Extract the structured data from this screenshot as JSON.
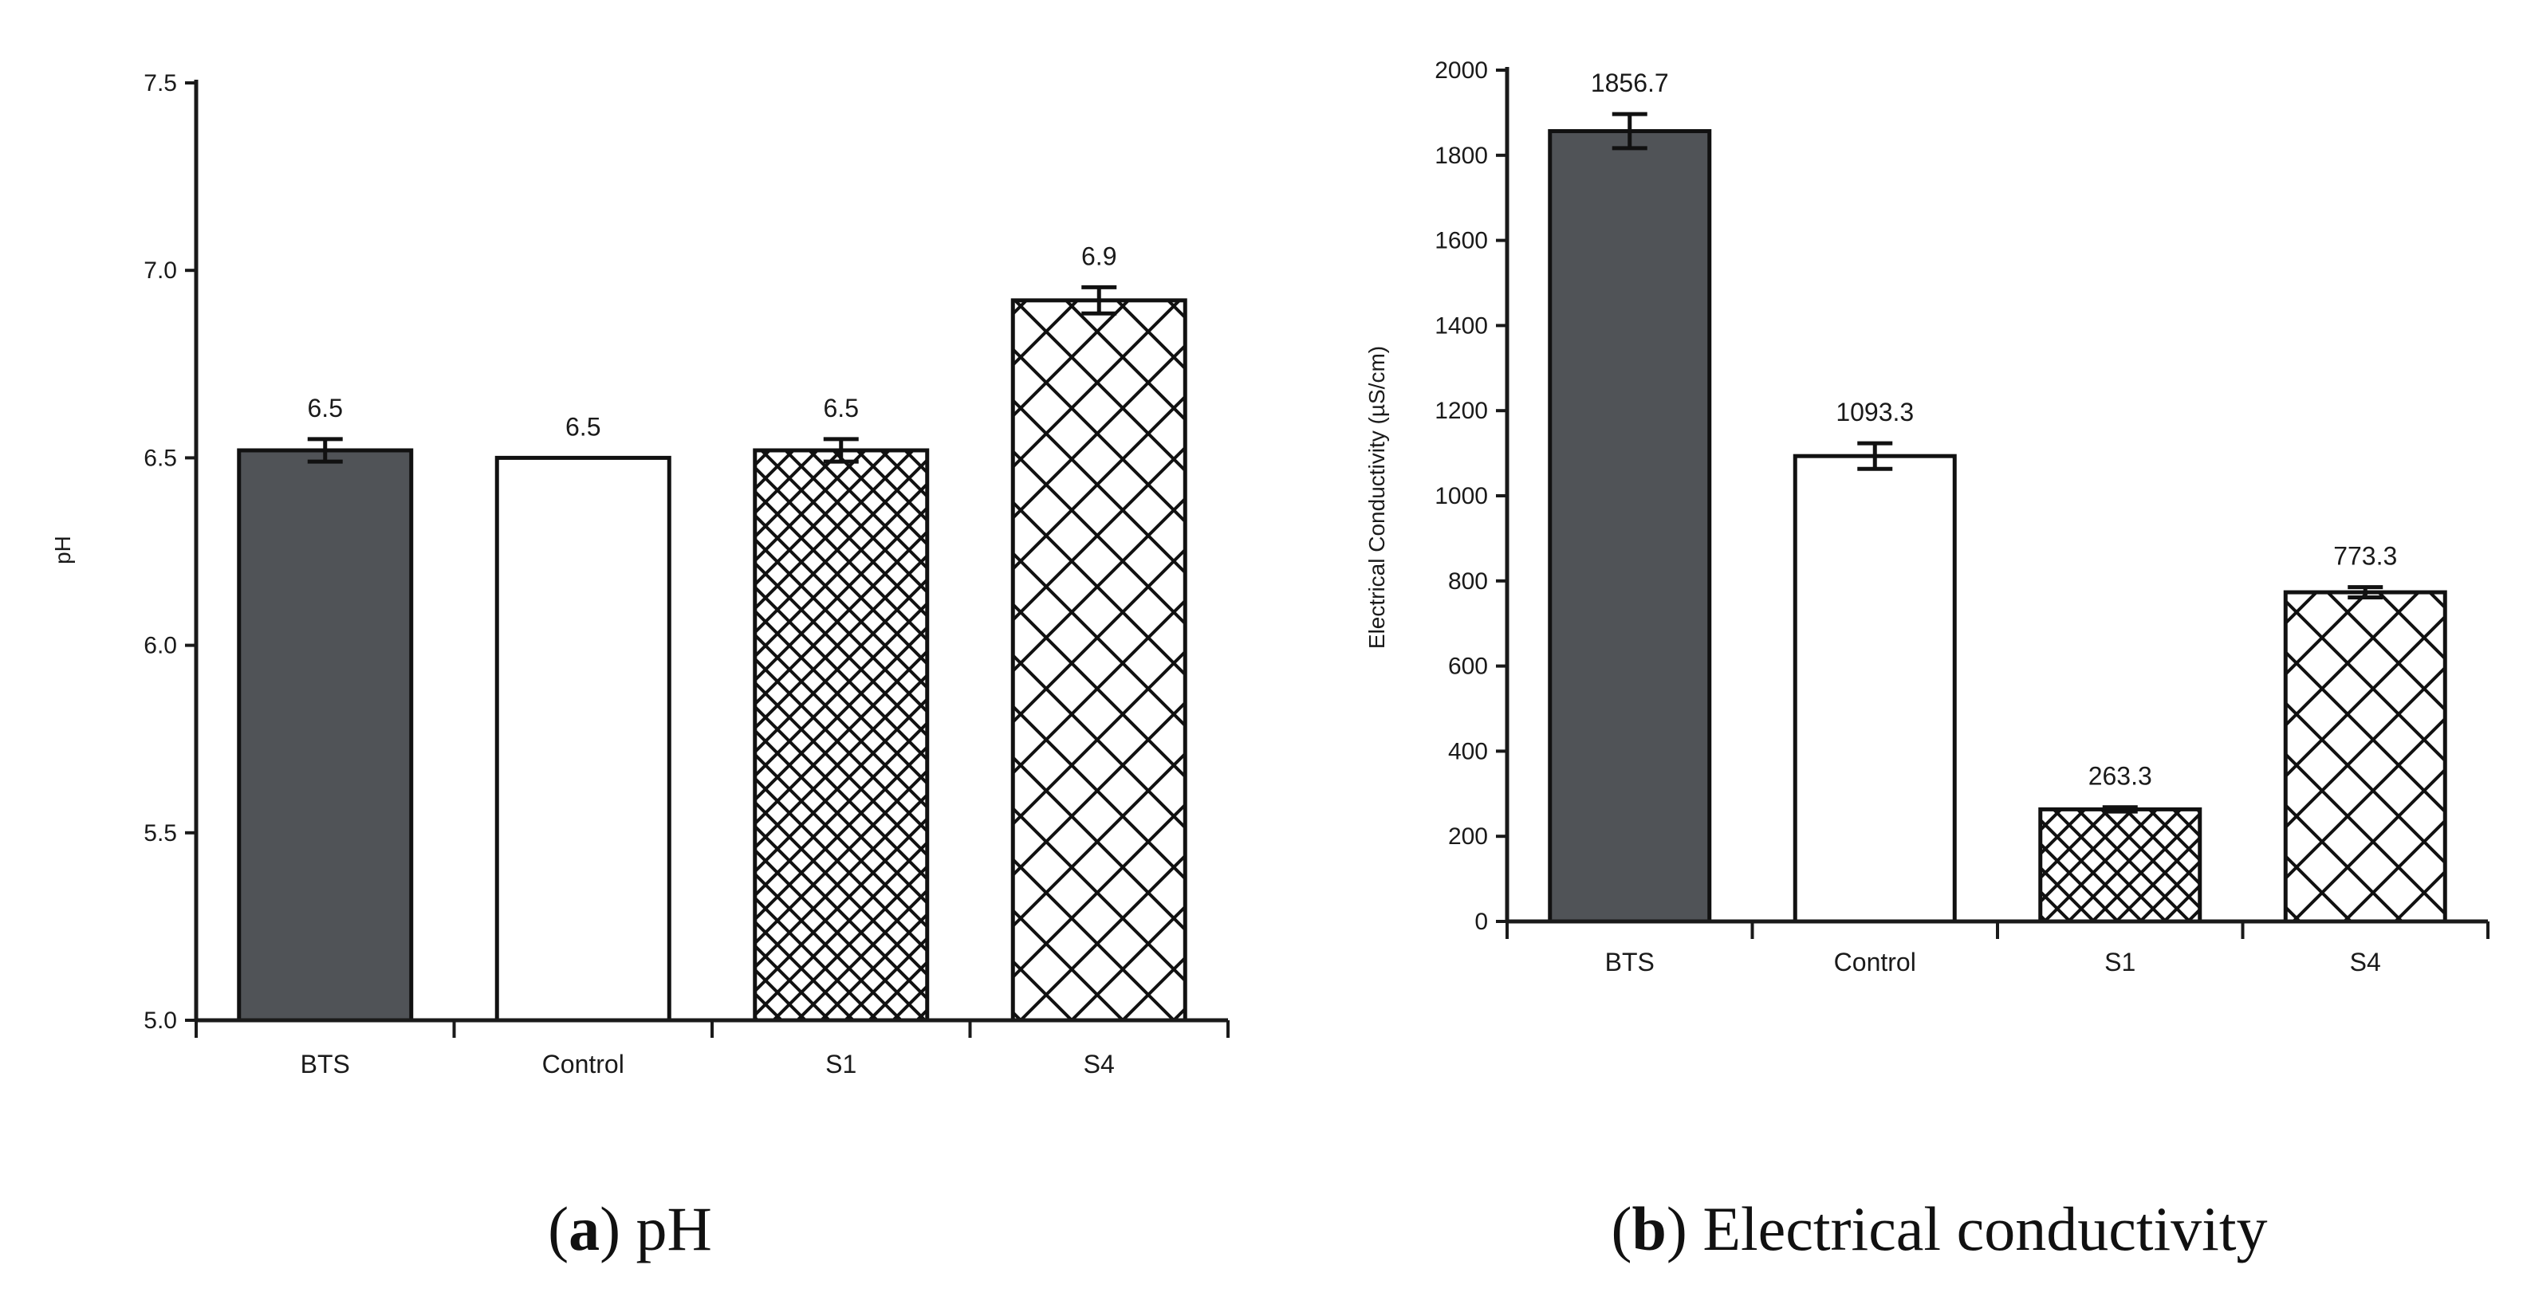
{
  "chart_data": [
    {
      "type": "bar",
      "title": "",
      "categories": [
        "BTS",
        "Control",
        "S1",
        "S4"
      ],
      "values": [
        6.52,
        6.5,
        6.52,
        6.92
      ],
      "errors": [
        0.03,
        0.0,
        0.03,
        0.035
      ],
      "data_labels": [
        "6.5",
        "6.5",
        "6.5",
        "6.9"
      ],
      "xlabel": "",
      "ylabel": "pH",
      "ylim": [
        5.0,
        7.5
      ],
      "yticks": [
        "5.0",
        "5.5",
        "6.0",
        "6.5",
        "7.0",
        "7.5"
      ],
      "grid": false,
      "caption_letter": "a",
      "caption_text": ") pH",
      "caption_open": "(",
      "fills": [
        "dark",
        "white",
        "crosshatch-fine",
        "crosshatch-coarse"
      ]
    },
    {
      "type": "bar",
      "title": "",
      "categories": [
        "BTS",
        "Control",
        "S1",
        "S4"
      ],
      "values": [
        1856.7,
        1093.3,
        263.3,
        773.3
      ],
      "errors": [
        40,
        30,
        5,
        12
      ],
      "data_labels": [
        "1856.7",
        "1093.3",
        "263.3",
        "773.3"
      ],
      "xlabel": "",
      "ylabel": "Electrical Conductivity (µS/cm)",
      "ylim": [
        0,
        2000
      ],
      "yticks": [
        "0",
        "200",
        "400",
        "600",
        "800",
        "1000",
        "1200",
        "1400",
        "1600",
        "1800",
        "2000"
      ],
      "grid": false,
      "caption_letter": "b",
      "caption_text": ") Electrical conductivity",
      "caption_open": "(",
      "fills": [
        "dark",
        "white",
        "crosshatch-fine",
        "crosshatch-coarse"
      ]
    }
  ],
  "colors": {
    "dark_bar": "#505357",
    "axis": "#1a1a1a",
    "white": "#ffffff"
  }
}
